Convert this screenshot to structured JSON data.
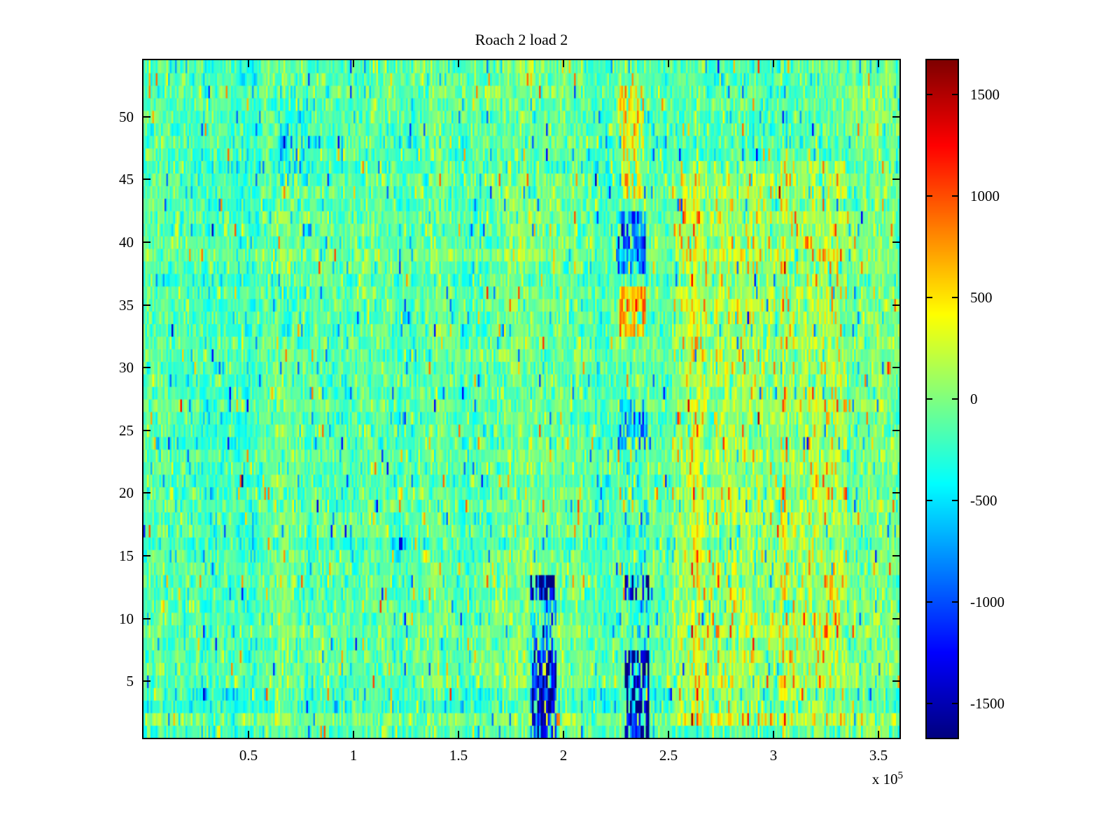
{
  "title": "Roach 2 load 2",
  "x_axis": {
    "tick_labels": [
      "0.5",
      "1",
      "1.5",
      "2",
      "2.5",
      "3",
      "3.5"
    ],
    "tick_values": [
      0.5,
      1,
      1.5,
      2,
      2.5,
      3,
      3.5
    ],
    "scale_prefix": "x 10",
    "scale_exponent": "5"
  },
  "y_axis": {
    "tick_labels": [
      "5",
      "10",
      "15",
      "20",
      "25",
      "30",
      "35",
      "40",
      "45",
      "50"
    ],
    "tick_values": [
      5,
      10,
      15,
      20,
      25,
      30,
      35,
      40,
      45,
      50
    ]
  },
  "colorbar": {
    "tick_labels": [
      "1500",
      "1000",
      "500",
      "0",
      "-500",
      "-1000",
      "-1500"
    ],
    "tick_values": [
      1500,
      1000,
      500,
      0,
      -500,
      -1000,
      -1500
    ]
  },
  "chart_data": {
    "type": "heatmap",
    "title": "Roach 2 load 2",
    "x_range": [
      0,
      3.6
    ],
    "x_unit_scale": 100000,
    "y_range": [
      0.5,
      54.5
    ],
    "clim": [
      -1670,
      1670
    ],
    "colormap": "jet",
    "grid": {
      "cols": 432,
      "rows": 54
    },
    "background_mean": -120,
    "noise_sigma": 175,
    "row_sigma": 45,
    "col_wave": 400,
    "spike_prob": 0.045,
    "features": [
      {
        "x0": 1.84,
        "x1": 1.97,
        "y0": 0.5,
        "y1": 7.5,
        "amp": -1300,
        "prob": 0.75
      },
      {
        "x0": 1.84,
        "x1": 1.97,
        "y0": 7.5,
        "y1": 11.5,
        "amp": -650,
        "prob": 0.45
      },
      {
        "x0": 1.84,
        "x1": 1.97,
        "y0": 11.5,
        "y1": 13.8,
        "amp": -1300,
        "prob": 0.75
      },
      {
        "x0": 2.29,
        "x1": 2.41,
        "y0": 0.5,
        "y1": 7.5,
        "amp": -1300,
        "prob": 0.75
      },
      {
        "x0": 2.29,
        "x1": 2.41,
        "y0": 7.5,
        "y1": 11.5,
        "amp": -550,
        "prob": 0.35
      },
      {
        "x0": 2.29,
        "x1": 2.41,
        "y0": 11.5,
        "y1": 13.8,
        "amp": -1300,
        "prob": 0.75
      },
      {
        "x0": 2.28,
        "x1": 2.4,
        "y0": 13.8,
        "y1": 23.0,
        "amp": -350,
        "prob": 0.35
      },
      {
        "x0": 2.26,
        "x1": 2.4,
        "y0": 23.5,
        "y1": 27.5,
        "amp": -550,
        "prob": 0.6
      },
      {
        "x0": 2.26,
        "x1": 2.39,
        "y0": 37.5,
        "y1": 42.5,
        "amp": -800,
        "prob": 0.8
      },
      {
        "x0": 2.27,
        "x1": 2.39,
        "y0": 32.5,
        "y1": 36.5,
        "amp": 750,
        "prob": 0.85
      },
      {
        "x0": 2.27,
        "x1": 2.38,
        "y0": 43.5,
        "y1": 52.5,
        "amp": 520,
        "prob": 0.75
      },
      {
        "x0": 2.52,
        "x1": 3.35,
        "y0": 2,
        "y1": 46,
        "amp": 230,
        "prob": 0.85
      },
      {
        "x0": 2.52,
        "x1": 3.35,
        "y0": 2,
        "y1": 46,
        "amp": 450,
        "prob": 0.1
      },
      {
        "x0": 0.64,
        "x1": 0.78,
        "y0": 44.5,
        "y1": 52.5,
        "amp": -320,
        "prob": 0.55
      },
      {
        "x0": 0.64,
        "x1": 0.78,
        "y0": 31.5,
        "y1": 36.5,
        "amp": -280,
        "prob": 0.45
      },
      {
        "x0": 1.56,
        "x1": 1.66,
        "y0": 44.5,
        "y1": 52.5,
        "amp": 280,
        "prob": 0.45
      },
      {
        "x0": 3.03,
        "x1": 3.07,
        "y0": 1,
        "y1": 47,
        "amp": 430,
        "prob": 0.5
      },
      {
        "x0": 2.61,
        "x1": 2.65,
        "y0": 1,
        "y1": 47,
        "amp": 380,
        "prob": 0.4
      }
    ]
  }
}
